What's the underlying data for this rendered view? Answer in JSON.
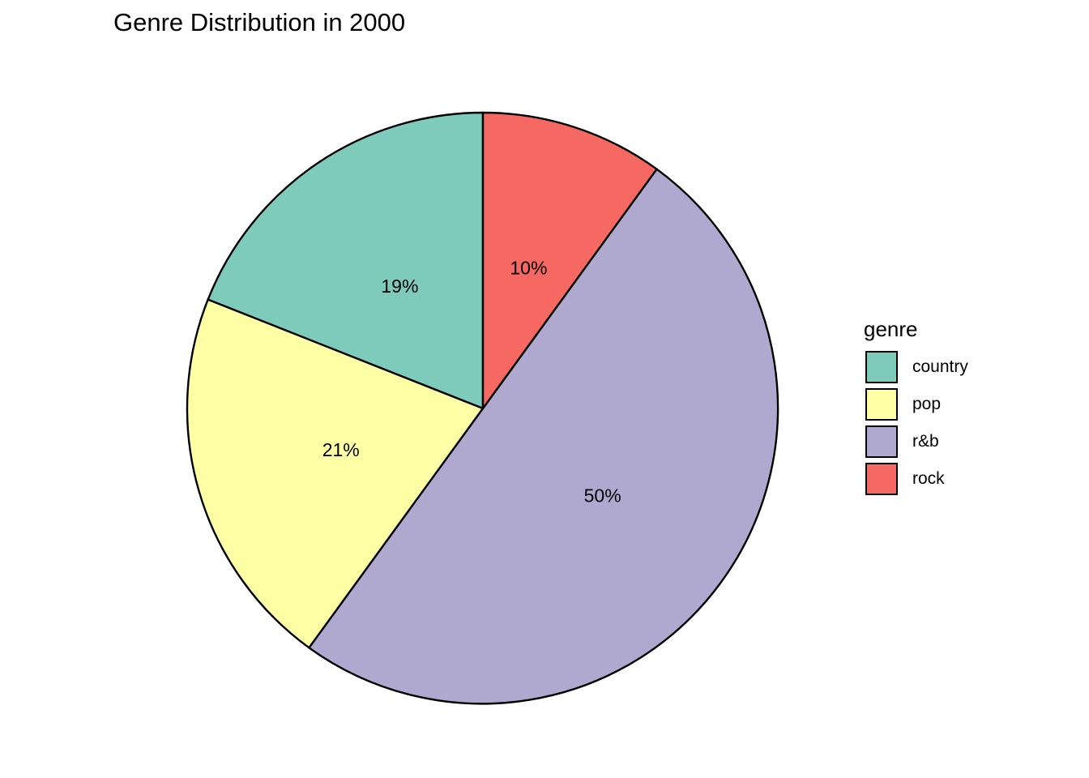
{
  "chart_data": {
    "type": "pie",
    "title": "Genre Distribution in 2000",
    "slices": [
      {
        "label": "country",
        "value": 19,
        "display": "19%",
        "color": "#7FCBBB"
      },
      {
        "label": "pop",
        "value": 21,
        "display": "21%",
        "color": "#FFFFA6"
      },
      {
        "label": "r&b",
        "value": 50,
        "display": "50%",
        "color": "#B0A9CF"
      },
      {
        "label": "rock",
        "value": 10,
        "display": "10%",
        "color": "#F56962"
      }
    ],
    "legend": {
      "title": "genre",
      "placement": "right"
    },
    "start_angle_deg": 0,
    "direction": "counterclockwise",
    "outline_color": "#000000"
  }
}
